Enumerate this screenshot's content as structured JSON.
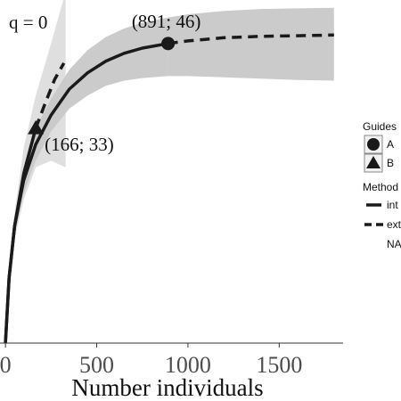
{
  "chart_data": {
    "type": "line",
    "title": "q = 0",
    "xlabel": "Number individuals",
    "ylabel": "",
    "xlim": [
      -30,
      1850
    ],
    "ylim": [
      0,
      52
    ],
    "x_ticks": [
      0,
      500,
      1000,
      1500
    ],
    "x_tick_labels": [
      "0",
      "500",
      "1000",
      "1500"
    ],
    "grid": false,
    "series": [
      {
        "name": "A",
        "method": "int",
        "points": [
          [
            0,
            0
          ],
          [
            20,
            10
          ],
          [
            50,
            18
          ],
          [
            100,
            25
          ],
          [
            166,
            30.5
          ],
          [
            250,
            35
          ],
          [
            350,
            39
          ],
          [
            450,
            41.5
          ],
          [
            550,
            43.3
          ],
          [
            650,
            44.5
          ],
          [
            750,
            45.3
          ],
          [
            891,
            46
          ]
        ],
        "ci_lower": [
          [
            0,
            0
          ],
          [
            20,
            9
          ],
          [
            50,
            16.5
          ],
          [
            100,
            23
          ],
          [
            166,
            28
          ],
          [
            250,
            32.5
          ],
          [
            350,
            36
          ],
          [
            450,
            38
          ],
          [
            550,
            39.5
          ],
          [
            650,
            40.3
          ],
          [
            750,
            40.7
          ],
          [
            891,
            41
          ]
        ],
        "ci_upper": [
          [
            0,
            0
          ],
          [
            20,
            11
          ],
          [
            50,
            19.5
          ],
          [
            100,
            27
          ],
          [
            166,
            33
          ],
          [
            250,
            37.5
          ],
          [
            350,
            42
          ],
          [
            450,
            45
          ],
          [
            550,
            47
          ],
          [
            650,
            48.3
          ],
          [
            750,
            49.2
          ],
          [
            891,
            50
          ]
        ]
      },
      {
        "name": "A",
        "method": "ext",
        "points": [
          [
            891,
            46
          ],
          [
            1000,
            46.4
          ],
          [
            1200,
            46.9
          ],
          [
            1400,
            47.1
          ],
          [
            1600,
            47.2
          ],
          [
            1800,
            47.3
          ]
        ],
        "ci_lower": [
          [
            891,
            41
          ],
          [
            1000,
            41
          ],
          [
            1200,
            40.8
          ],
          [
            1400,
            40.6
          ],
          [
            1600,
            40.4
          ],
          [
            1800,
            40.3
          ]
        ],
        "ci_upper": [
          [
            891,
            50
          ],
          [
            1000,
            50.5
          ],
          [
            1200,
            51
          ],
          [
            1400,
            51.3
          ],
          [
            1600,
            51.4
          ],
          [
            1800,
            51.5
          ]
        ]
      },
      {
        "name": "B",
        "method": "int",
        "points": [
          [
            0,
            0
          ],
          [
            20,
            10
          ],
          [
            50,
            18
          ],
          [
            100,
            26
          ],
          [
            166,
            33
          ]
        ],
        "ci_lower": [
          [
            0,
            0
          ],
          [
            20,
            9
          ],
          [
            50,
            16
          ],
          [
            100,
            22
          ],
          [
            166,
            27
          ],
          [
            250,
            28
          ],
          [
            330,
            27
          ]
        ],
        "ci_upper": [
          [
            0,
            0
          ],
          [
            20,
            11
          ],
          [
            50,
            20
          ],
          [
            100,
            30
          ],
          [
            166,
            38
          ],
          [
            250,
            46
          ],
          [
            330,
            54
          ]
        ]
      },
      {
        "name": "B",
        "method": "ext",
        "points": [
          [
            166,
            33
          ],
          [
            220,
            37
          ],
          [
            270,
            40.5
          ],
          [
            320,
            43
          ]
        ]
      }
    ],
    "reference_points": [
      {
        "series": "A",
        "x": 891,
        "y": 46,
        "label": "(891; 46)",
        "shape": "circle"
      },
      {
        "series": "B",
        "x": 166,
        "y": 33,
        "label": "(166; 33)",
        "shape": "triangle"
      }
    ],
    "legend": {
      "placement": "right",
      "guides_title": "Guides",
      "guides": [
        {
          "label": "A",
          "shape": "circle"
        },
        {
          "label": "B",
          "shape": "triangle"
        }
      ],
      "method_title": "Method",
      "methods": [
        {
          "label": "int",
          "style": "solid"
        },
        {
          "label": "ext",
          "style": "dashed"
        },
        {
          "label": "NA",
          "style": "none"
        }
      ]
    },
    "colors": {
      "line": "#1a1a1a",
      "band_a": "#c8c8c8",
      "band_b": "#dcdcdc",
      "tick_label": "#4d4d4d",
      "background": "#ffffff"
    }
  }
}
